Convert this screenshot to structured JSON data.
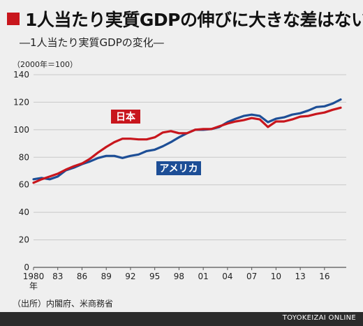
{
  "header": {
    "title": "1人当たり実質GDPの伸びに大きな差はない",
    "subtitle": "―1人当たり実質GDPの変化―",
    "unit": "（2000年＝100）"
  },
  "footer": {
    "source": "（出所）内閣府、米商務省",
    "brand": "TOYOKEIZAI ONLINE"
  },
  "colors": {
    "japan": "#c8161d",
    "usa": "#1d4e96",
    "grid": "#c8c8c8",
    "axis": "#555555"
  },
  "chart_data": {
    "type": "line",
    "title": "1人当たり実質GDPの伸びに大きな差はない",
    "ylabel": "（2000年＝100）",
    "ylim": [
      0,
      140
    ],
    "yticks": [
      0,
      20,
      40,
      60,
      80,
      100,
      120,
      140
    ],
    "xticks": [
      {
        "year": 1980,
        "label": "1980"
      },
      {
        "year": 1983,
        "label": "83"
      },
      {
        "year": 1986,
        "label": "86"
      },
      {
        "year": 1989,
        "label": "89"
      },
      {
        "year": 1992,
        "label": "92"
      },
      {
        "year": 1995,
        "label": "95"
      },
      {
        "year": 1998,
        "label": "98"
      },
      {
        "year": 2001,
        "label": "01"
      },
      {
        "year": 2004,
        "label": "04"
      },
      {
        "year": 2007,
        "label": "07"
      },
      {
        "year": 2010,
        "label": "10"
      },
      {
        "year": 2013,
        "label": "13"
      },
      {
        "year": 2016,
        "label": "16"
      }
    ],
    "x_unit_label": "年",
    "x": [
      1980,
      1981,
      1982,
      1983,
      1984,
      1985,
      1986,
      1987,
      1988,
      1989,
      1990,
      1991,
      1992,
      1993,
      1994,
      1995,
      1996,
      1997,
      1998,
      1999,
      2000,
      2001,
      2002,
      2003,
      2004,
      2005,
      2006,
      2007,
      2008,
      2009,
      2010,
      2011,
      2012,
      2013,
      2014,
      2015,
      2016,
      2017,
      2018
    ],
    "series": [
      {
        "name": "日本",
        "color": "#c8161d",
        "values": [
          61.5,
          64,
          66,
          68,
          71,
          73.5,
          75.5,
          79,
          83.5,
          87.5,
          91,
          93.5,
          93.5,
          93,
          93,
          94.5,
          98,
          99,
          97.5,
          97.5,
          100,
          100.5,
          100.5,
          102.5,
          104.5,
          106,
          107,
          108.5,
          107.5,
          102,
          106,
          106,
          107.5,
          109.5,
          110,
          111.5,
          112.5,
          114.5,
          116
        ]
      },
      {
        "name": "アメリカ",
        "color": "#1d4e96",
        "values": [
          64,
          65,
          64,
          66,
          70.5,
          72.5,
          75,
          77,
          79.5,
          81,
          81,
          79.5,
          81,
          82,
          84.5,
          85.5,
          88,
          91,
          94.5,
          97.5,
          100,
          100,
          100.5,
          102,
          105.5,
          108,
          110,
          111,
          110,
          105.5,
          108,
          109,
          111,
          112,
          114,
          116.5,
          117,
          119,
          122
        ]
      }
    ]
  }
}
